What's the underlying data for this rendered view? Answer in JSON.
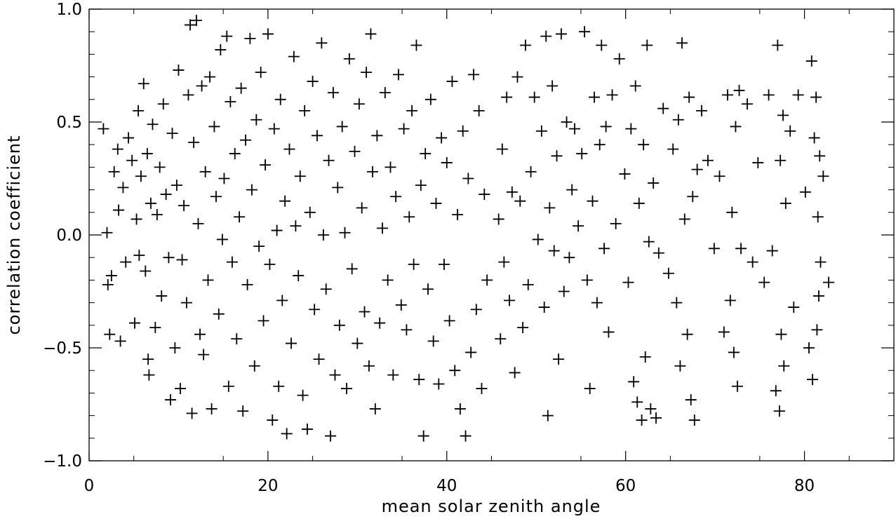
{
  "chart_data": {
    "type": "scatter",
    "title": "",
    "xlabel": "mean solar zenith angle",
    "ylabel": "correlation coefficient",
    "xlim": [
      0,
      90
    ],
    "ylim": [
      -1.0,
      1.0
    ],
    "xticks": [
      "0",
      "20",
      "40",
      "60",
      "80"
    ],
    "yticks": [
      "−1.0",
      "−0.5",
      "0.0",
      "0.5",
      "1.0"
    ],
    "xtick_values": [
      0,
      20,
      40,
      60,
      80
    ],
    "ytick_values": [
      -1.0,
      -0.5,
      0.0,
      0.5,
      1.0
    ],
    "marker": "plus",
    "grid": false,
    "legend": "none",
    "colors": {
      "marker": "#000000",
      "axes": "#000000",
      "background": "#ffffff"
    },
    "series": [
      {
        "points": [
          [
            1.6,
            0.47
          ],
          [
            2.0,
            0.01
          ],
          [
            2.1,
            -0.22
          ],
          [
            2.3,
            -0.44
          ],
          [
            2.5,
            -0.18
          ],
          [
            2.8,
            0.28
          ],
          [
            3.2,
            0.38
          ],
          [
            3.3,
            0.11
          ],
          [
            3.5,
            -0.47
          ],
          [
            3.8,
            0.21
          ],
          [
            4.1,
            -0.12
          ],
          [
            4.4,
            0.43
          ],
          [
            4.8,
            0.33
          ],
          [
            5.1,
            -0.39
          ],
          [
            5.3,
            0.07
          ],
          [
            5.5,
            0.55
          ],
          [
            5.6,
            -0.09
          ],
          [
            5.8,
            0.26
          ],
          [
            6.1,
            0.67
          ],
          [
            6.3,
            -0.16
          ],
          [
            6.5,
            0.36
          ],
          [
            6.6,
            -0.55
          ],
          [
            6.7,
            -0.62
          ],
          [
            6.9,
            0.14
          ],
          [
            7.1,
            0.49
          ],
          [
            7.4,
            -0.41
          ],
          [
            7.6,
            0.09
          ],
          [
            7.9,
            0.3
          ],
          [
            8.1,
            -0.27
          ],
          [
            8.3,
            0.58
          ],
          [
            8.6,
            0.18
          ],
          [
            8.9,
            -0.1
          ],
          [
            9.1,
            -0.73
          ],
          [
            9.3,
            0.45
          ],
          [
            9.6,
            -0.5
          ],
          [
            9.8,
            0.22
          ],
          [
            10.0,
            0.73
          ],
          [
            10.2,
            -0.68
          ],
          [
            10.4,
            -0.11
          ],
          [
            10.6,
            0.13
          ],
          [
            10.9,
            -0.3
          ],
          [
            11.1,
            0.62
          ],
          [
            11.3,
            0.93
          ],
          [
            11.5,
            -0.79
          ],
          [
            11.7,
            0.41
          ],
          [
            12.0,
            0.95
          ],
          [
            12.2,
            0.05
          ],
          [
            12.4,
            -0.44
          ],
          [
            12.6,
            0.66
          ],
          [
            12.8,
            -0.53
          ],
          [
            13.0,
            0.28
          ],
          [
            13.3,
            -0.2
          ],
          [
            13.5,
            0.7
          ],
          [
            13.7,
            -0.77
          ],
          [
            14.0,
            0.48
          ],
          [
            14.2,
            0.17
          ],
          [
            14.5,
            -0.35
          ],
          [
            14.7,
            0.82
          ],
          [
            14.9,
            -0.02
          ],
          [
            15.1,
            0.25
          ],
          [
            15.4,
            0.88
          ],
          [
            15.6,
            -0.67
          ],
          [
            15.8,
            0.59
          ],
          [
            16.0,
            -0.12
          ],
          [
            16.3,
            0.36
          ],
          [
            16.5,
            -0.46
          ],
          [
            16.8,
            0.08
          ],
          [
            17.0,
            0.65
          ],
          [
            17.2,
            -0.78
          ],
          [
            17.5,
            0.42
          ],
          [
            17.7,
            -0.22
          ],
          [
            18.0,
            0.87
          ],
          [
            18.2,
            0.2
          ],
          [
            18.5,
            -0.58
          ],
          [
            18.7,
            0.51
          ],
          [
            19.0,
            -0.05
          ],
          [
            19.2,
            0.72
          ],
          [
            19.5,
            -0.38
          ],
          [
            19.7,
            0.31
          ],
          [
            20.0,
            0.89
          ],
          [
            20.2,
            -0.13
          ],
          [
            20.5,
            -0.82
          ],
          [
            20.7,
            0.47
          ],
          [
            21.0,
            0.02
          ],
          [
            21.2,
            -0.67
          ],
          [
            21.4,
            0.6
          ],
          [
            21.6,
            -0.29
          ],
          [
            21.9,
            0.15
          ],
          [
            22.1,
            -0.88
          ],
          [
            22.4,
            0.38
          ],
          [
            22.6,
            -0.48
          ],
          [
            22.9,
            0.79
          ],
          [
            23.1,
            0.04
          ],
          [
            23.4,
            -0.18
          ],
          [
            23.6,
            0.26
          ],
          [
            23.9,
            -0.71
          ],
          [
            24.1,
            0.55
          ],
          [
            24.4,
            -0.86
          ],
          [
            24.7,
            0.1
          ],
          [
            25.0,
            0.68
          ],
          [
            25.2,
            -0.33
          ],
          [
            25.5,
            0.44
          ],
          [
            25.7,
            -0.55
          ],
          [
            26.0,
            0.85
          ],
          [
            26.2,
            0.0
          ],
          [
            26.5,
            -0.24
          ],
          [
            26.8,
            0.33
          ],
          [
            27.0,
            -0.89
          ],
          [
            27.3,
            0.63
          ],
          [
            27.5,
            -0.62
          ],
          [
            27.8,
            0.21
          ],
          [
            28.0,
            -0.4
          ],
          [
            28.3,
            0.48
          ],
          [
            28.6,
            0.01
          ],
          [
            28.8,
            -0.68
          ],
          [
            29.1,
            0.78
          ],
          [
            29.4,
            -0.15
          ],
          [
            29.7,
            0.37
          ],
          [
            30.0,
            -0.48
          ],
          [
            30.2,
            0.58
          ],
          [
            30.5,
            0.12
          ],
          [
            30.8,
            -0.34
          ],
          [
            31.0,
            0.72
          ],
          [
            31.3,
            -0.58
          ],
          [
            31.5,
            0.89
          ],
          [
            31.7,
            0.28
          ],
          [
            32.0,
            -0.77
          ],
          [
            32.2,
            0.44
          ],
          [
            32.5,
            -0.39
          ],
          [
            32.8,
            0.03
          ],
          [
            33.1,
            0.63
          ],
          [
            33.4,
            -0.2
          ],
          [
            33.7,
            0.3
          ],
          [
            34.0,
            -0.62
          ],
          [
            34.3,
            0.17
          ],
          [
            34.6,
            0.71
          ],
          [
            34.9,
            -0.31
          ],
          [
            35.2,
            0.47
          ],
          [
            35.5,
            -0.42
          ],
          [
            35.8,
            0.08
          ],
          [
            36.1,
            0.55
          ],
          [
            36.3,
            -0.13
          ],
          [
            36.6,
            0.84
          ],
          [
            36.9,
            -0.64
          ],
          [
            37.1,
            0.22
          ],
          [
            37.4,
            -0.89
          ],
          [
            37.6,
            0.36
          ],
          [
            37.9,
            -0.24
          ],
          [
            38.2,
            0.6
          ],
          [
            38.5,
            -0.47
          ],
          [
            38.8,
            0.14
          ],
          [
            39.1,
            -0.66
          ],
          [
            39.4,
            0.43
          ],
          [
            39.7,
            -0.13
          ],
          [
            40.0,
            0.32
          ],
          [
            40.3,
            -0.38
          ],
          [
            40.6,
            0.68
          ],
          [
            40.9,
            -0.6
          ],
          [
            41.2,
            0.09
          ],
          [
            41.5,
            -0.77
          ],
          [
            41.8,
            0.46
          ],
          [
            42.1,
            -0.89
          ],
          [
            42.4,
            0.25
          ],
          [
            42.7,
            -0.52
          ],
          [
            43.0,
            0.71
          ],
          [
            43.3,
            -0.33
          ],
          [
            43.6,
            0.55
          ],
          [
            43.9,
            -0.68
          ],
          [
            44.2,
            0.18
          ],
          [
            44.5,
            -0.2
          ],
          [
            45.8,
            0.07
          ],
          [
            46.0,
            -0.46
          ],
          [
            46.2,
            0.38
          ],
          [
            46.4,
            -0.12
          ],
          [
            46.7,
            0.61
          ],
          [
            47.0,
            -0.29
          ],
          [
            47.3,
            0.19
          ],
          [
            47.6,
            -0.61
          ],
          [
            47.9,
            0.7
          ],
          [
            48.2,
            0.15
          ],
          [
            48.5,
            -0.41
          ],
          [
            48.8,
            0.84
          ],
          [
            49.1,
            -0.22
          ],
          [
            49.4,
            0.28
          ],
          [
            49.8,
            0.61
          ],
          [
            50.2,
            -0.02
          ],
          [
            50.6,
            0.46
          ],
          [
            50.9,
            -0.32
          ],
          [
            51.1,
            0.88
          ],
          [
            51.3,
            -0.8
          ],
          [
            51.5,
            0.12
          ],
          [
            51.8,
            0.66
          ],
          [
            52.0,
            -0.07
          ],
          [
            52.3,
            0.35
          ],
          [
            52.5,
            -0.55
          ],
          [
            52.8,
            0.89
          ],
          [
            53.1,
            -0.25
          ],
          [
            53.4,
            0.5
          ],
          [
            53.7,
            -0.1
          ],
          [
            54.0,
            0.2
          ],
          [
            54.3,
            0.47
          ],
          [
            54.7,
            0.04
          ],
          [
            55.1,
            0.36
          ],
          [
            55.4,
            0.9
          ],
          [
            55.7,
            -0.2
          ],
          [
            56.0,
            -0.68
          ],
          [
            56.3,
            0.15
          ],
          [
            56.5,
            0.61
          ],
          [
            56.8,
            -0.3
          ],
          [
            57.1,
            0.4
          ],
          [
            57.3,
            0.84
          ],
          [
            57.6,
            -0.06
          ],
          [
            57.8,
            0.48
          ],
          [
            58.1,
            -0.43
          ],
          [
            58.5,
            0.62
          ],
          [
            58.9,
            0.05
          ],
          [
            59.3,
            0.78
          ],
          [
            59.9,
            0.27
          ],
          [
            60.3,
            -0.21
          ],
          [
            60.6,
            0.47
          ],
          [
            60.9,
            -0.65
          ],
          [
            61.1,
            0.66
          ],
          [
            61.3,
            -0.74
          ],
          [
            61.5,
            0.14
          ],
          [
            61.8,
            -0.82
          ],
          [
            62.0,
            0.4
          ],
          [
            62.2,
            -0.54
          ],
          [
            62.4,
            0.84
          ],
          [
            62.6,
            -0.03
          ],
          [
            62.8,
            -0.77
          ],
          [
            63.1,
            0.23
          ],
          [
            63.4,
            -0.81
          ],
          [
            63.7,
            -0.08
          ],
          [
            64.2,
            0.56
          ],
          [
            64.8,
            -0.17
          ],
          [
            65.3,
            0.38
          ],
          [
            65.7,
            -0.3
          ],
          [
            65.9,
            0.51
          ],
          [
            66.1,
            -0.58
          ],
          [
            66.3,
            0.85
          ],
          [
            66.6,
            0.07
          ],
          [
            66.9,
            -0.44
          ],
          [
            67.1,
            0.61
          ],
          [
            67.3,
            -0.73
          ],
          [
            67.5,
            0.17
          ],
          [
            67.7,
            -0.82
          ],
          [
            68.0,
            0.29
          ],
          [
            68.5,
            0.55
          ],
          [
            69.2,
            0.33
          ],
          [
            69.9,
            -0.06
          ],
          [
            70.5,
            0.26
          ],
          [
            71.0,
            -0.43
          ],
          [
            71.4,
            0.62
          ],
          [
            71.7,
            -0.29
          ],
          [
            71.9,
            0.1
          ],
          [
            72.1,
            -0.52
          ],
          [
            72.3,
            0.48
          ],
          [
            72.5,
            -0.67
          ],
          [
            72.7,
            0.64
          ],
          [
            72.9,
            -0.06
          ],
          [
            73.6,
            0.58
          ],
          [
            74.2,
            -0.12
          ],
          [
            74.8,
            0.32
          ],
          [
            75.5,
            -0.21
          ],
          [
            76.0,
            0.62
          ],
          [
            76.4,
            -0.07
          ],
          [
            76.8,
            -0.69
          ],
          [
            77.0,
            0.84
          ],
          [
            77.2,
            -0.78
          ],
          [
            77.3,
            0.33
          ],
          [
            77.4,
            -0.44
          ],
          [
            77.6,
            0.53
          ],
          [
            77.7,
            -0.58
          ],
          [
            77.9,
            0.14
          ],
          [
            78.4,
            0.46
          ],
          [
            78.8,
            -0.32
          ],
          [
            79.3,
            0.62
          ],
          [
            80.1,
            0.19
          ],
          [
            80.5,
            -0.5
          ],
          [
            80.8,
            0.77
          ],
          [
            80.9,
            -0.64
          ],
          [
            81.1,
            0.43
          ],
          [
            81.3,
            0.61
          ],
          [
            81.4,
            -0.42
          ],
          [
            81.5,
            0.08
          ],
          [
            81.6,
            -0.27
          ],
          [
            81.7,
            0.35
          ],
          [
            81.8,
            -0.12
          ],
          [
            82.1,
            0.26
          ],
          [
            82.7,
            -0.21
          ]
        ]
      }
    ]
  }
}
